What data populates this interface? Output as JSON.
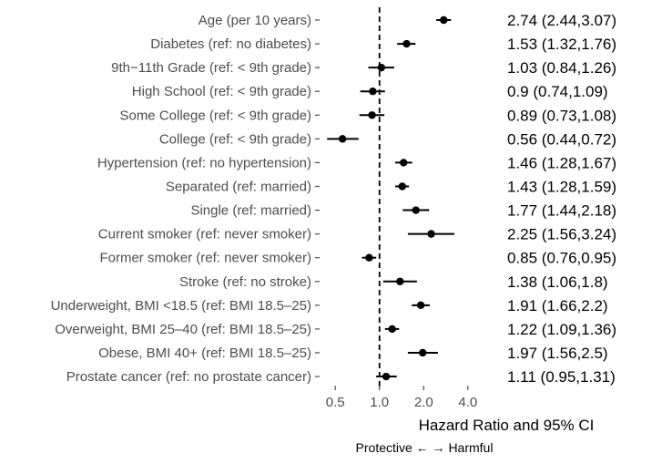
{
  "chart_data": {
    "type": "forest",
    "xscale": "log",
    "xlabel": "Hazard Ratio and 95% CI",
    "xticks": [
      0.5,
      1.0,
      2.0,
      4.0
    ],
    "xtick_labels": [
      "0.5",
      "1.0",
      "2.0",
      "4.0"
    ],
    "xlim": [
      0.42,
      4.9
    ],
    "reference_line": 1.0,
    "direction_label": "Protective ← → Harmful",
    "rows": [
      {
        "label": "Age (per 10 years)",
        "hr": 2.74,
        "lo": 2.44,
        "hi": 3.07,
        "text": "2.74 (2.44,3.07)"
      },
      {
        "label": "Diabetes (ref: no diabetes)",
        "hr": 1.53,
        "lo": 1.32,
        "hi": 1.76,
        "text": "1.53 (1.32,1.76)"
      },
      {
        "label": "9th−11th Grade (ref: < 9th grade)",
        "hr": 1.03,
        "lo": 0.84,
        "hi": 1.26,
        "text": "1.03 (0.84,1.26)"
      },
      {
        "label": "High School (ref: < 9th grade)",
        "hr": 0.9,
        "lo": 0.74,
        "hi": 1.09,
        "text": "0.9 (0.74,1.09)"
      },
      {
        "label": "Some College (ref: < 9th grade)",
        "hr": 0.89,
        "lo": 0.73,
        "hi": 1.08,
        "text": "0.89 (0.73,1.08)"
      },
      {
        "label": "College (ref: < 9th grade)",
        "hr": 0.56,
        "lo": 0.44,
        "hi": 0.72,
        "text": "0.56 (0.44,0.72)"
      },
      {
        "label": "Hypertension (ref: no hypertension)",
        "hr": 1.46,
        "lo": 1.28,
        "hi": 1.67,
        "text": "1.46 (1.28,1.67)"
      },
      {
        "label": "Separated (ref: married)",
        "hr": 1.43,
        "lo": 1.28,
        "hi": 1.59,
        "text": "1.43 (1.28,1.59)"
      },
      {
        "label": "Single (ref: married)",
        "hr": 1.77,
        "lo": 1.44,
        "hi": 2.18,
        "text": "1.77 (1.44,2.18)"
      },
      {
        "label": "Current smoker (ref: never smoker)",
        "hr": 2.25,
        "lo": 1.56,
        "hi": 3.24,
        "text": "2.25 (1.56,3.24)"
      },
      {
        "label": "Former smoker (ref: never smoker)",
        "hr": 0.85,
        "lo": 0.76,
        "hi": 0.95,
        "text": "0.85 (0.76,0.95)"
      },
      {
        "label": "Stroke (ref: no stroke)",
        "hr": 1.38,
        "lo": 1.06,
        "hi": 1.8,
        "text": "1.38 (1.06,1.8)"
      },
      {
        "label": "Underweight, BMI <18.5 (ref: BMI 18.5–25)",
        "hr": 1.91,
        "lo": 1.66,
        "hi": 2.2,
        "text": "1.91 (1.66,2.2)"
      },
      {
        "label": "Overweight, BMI 25–40 (ref: BMI 18.5–25)",
        "hr": 1.22,
        "lo": 1.09,
        "hi": 1.36,
        "text": "1.22 (1.09,1.36)"
      },
      {
        "label": "Obese, BMI 40+ (ref: BMI 18.5–25)",
        "hr": 1.97,
        "lo": 1.56,
        "hi": 2.5,
        "text": "1.97 (1.56,2.5)"
      },
      {
        "label": "Prostate cancer (ref: no prostate cancer)",
        "hr": 1.11,
        "lo": 0.95,
        "hi": 1.31,
        "text": "1.11 (0.95,1.31)"
      }
    ]
  }
}
